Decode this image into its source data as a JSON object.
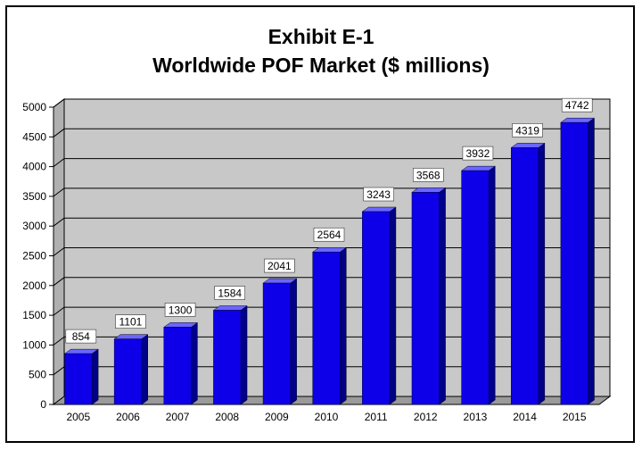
{
  "chart_data": {
    "type": "bar",
    "title": "Exhibit E-1",
    "subtitle": "Worldwide POF Market ($ millions)",
    "categories": [
      "2005",
      "2006",
      "2007",
      "2008",
      "2009",
      "2010",
      "2011",
      "2012",
      "2013",
      "2014",
      "2015"
    ],
    "values": [
      854,
      1101,
      1300,
      1584,
      2041,
      2564,
      3243,
      3568,
      3932,
      4319,
      4742
    ],
    "ylim": [
      0,
      5000
    ],
    "yticks": [
      0,
      500,
      1000,
      1500,
      2000,
      2500,
      3000,
      3500,
      4000,
      4500,
      5000
    ],
    "grid": true,
    "legend": "none",
    "colors": {
      "bar_front": "#0d00e8",
      "bar_side": "#000088",
      "bar_top": "#6a66ff",
      "plot_back": "#c8c8c8",
      "plot_floor": "#9a9a9a"
    }
  }
}
